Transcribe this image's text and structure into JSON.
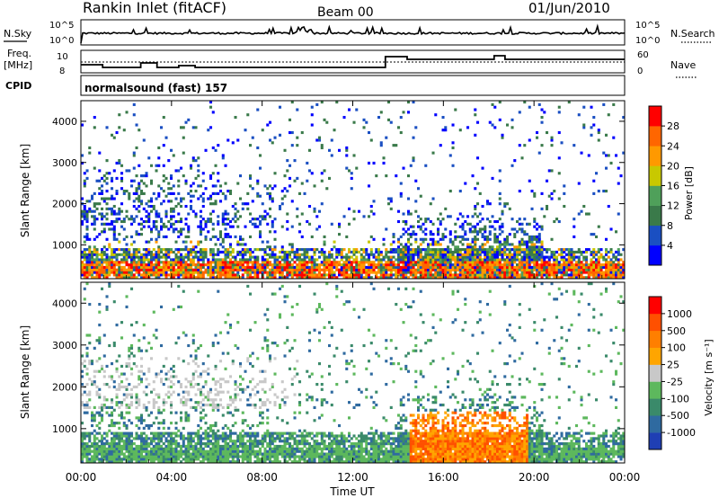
{
  "header": {
    "title": "Rankin Inlet (fitACF)",
    "beam": "Beam 00",
    "date": "01/Jun/2010"
  },
  "noise_panel": {
    "left_label": "N.Sky",
    "right_label": "N.Search",
    "left_ticks": [
      "10^5",
      "10^0"
    ],
    "right_ticks": [
      "10^5",
      "10^0"
    ]
  },
  "freq_panel": {
    "left_label_1": "Freq.",
    "left_label_2": "[MHz]",
    "right_label": "Nave",
    "left_ticks": [
      "10",
      "8"
    ],
    "right_ticks": [
      "60",
      "0"
    ]
  },
  "cpid": {
    "label": "CPID",
    "text": "normalsound (fast) 157"
  },
  "power_panel": {
    "ylabel": "Slant Range [km]",
    "yticks": [
      "4000",
      "3000",
      "2000",
      "1000"
    ],
    "colorbar_label": "Power [dB]",
    "colorbar_ticks": [
      "28",
      "24",
      "20",
      "16",
      "12",
      "8",
      "4"
    ],
    "colors": [
      "#0000ff",
      "#1a4fc2",
      "#3a7a4a",
      "#4fa05a",
      "#c8c800",
      "#ff9900",
      "#ff6600",
      "#ff0000"
    ]
  },
  "velocity_panel": {
    "ylabel": "Slant Range [km]",
    "yticks": [
      "4000",
      "3000",
      "2000",
      "1000"
    ],
    "colorbar_label": "Velocity [m s⁻¹]",
    "colorbar_ticks": [
      "1000",
      "500",
      "100",
      "25",
      "-25",
      "-100",
      "-500",
      "-1000"
    ],
    "colors": [
      "#1f3fb4",
      "#2f6aa0",
      "#3a8a6a",
      "#5db85d",
      "#c8c8c8",
      "#ffa500",
      "#ff7f00",
      "#ff5000",
      "#ff0000"
    ]
  },
  "x_axis": {
    "label": "Time UT",
    "ticks": [
      "00:00",
      "04:00",
      "08:00",
      "12:00",
      "16:00",
      "20:00",
      "00:00"
    ]
  },
  "chart_data": {
    "type": "heatmap",
    "title": "Rankin Inlet (fitACF)",
    "x": [
      "00:00",
      "04:00",
      "08:00",
      "12:00",
      "16:00",
      "20:00",
      "00:00"
    ],
    "xlabel": "Time UT",
    "ylabel": "Slant Range [km]",
    "ylim": [
      180,
      4500
    ],
    "series": [
      {
        "name": "Power [dB]",
        "range": [
          0,
          30
        ]
      },
      {
        "name": "Velocity [m s⁻¹]",
        "range": [
          -1000,
          1000
        ]
      }
    ]
  }
}
